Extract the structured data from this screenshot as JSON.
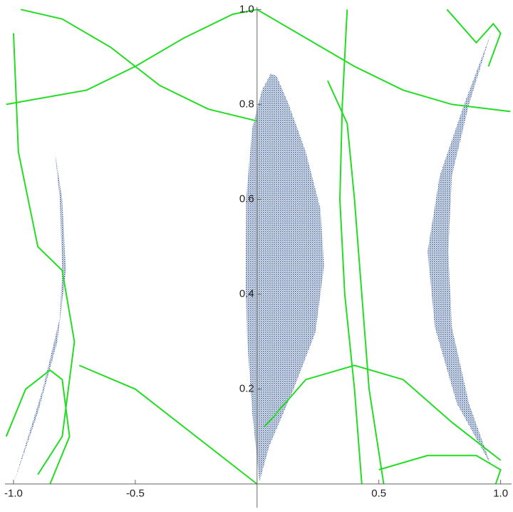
{
  "chart_data": {
    "type": "region",
    "xlim": [
      -1.035,
      1.045
    ],
    "ylim": [
      -0.05,
      1.005
    ],
    "xticks": [
      {
        "value": -1,
        "label": "-1.0"
      },
      -0.5,
      0.5,
      {
        "value": 1,
        "label": "1.0"
      }
    ],
    "yticks": [
      0.2,
      0.4,
      0.6,
      0.8,
      {
        "value": 1,
        "label": "1.0"
      }
    ],
    "regions": [
      {
        "color": "#4a6aa8",
        "x": [
          0.056,
          0.02,
          -0.02,
          -0.045,
          -0.047,
          -0.04,
          -0.02,
          0.01,
          0.05,
          0.15,
          0.24,
          0.275,
          0.26,
          0.2,
          0.13,
          0.08
        ],
        "y": [
          0.865,
          0.83,
          0.75,
          0.6,
          0.42,
          0.3,
          0.15,
          0.005,
          0.08,
          0.2,
          0.32,
          0.46,
          0.58,
          0.7,
          0.8,
          0.86
        ]
      },
      {
        "color": "#4a6aa8",
        "x": [
          0.96,
          0.85,
          0.75,
          0.7,
          0.73,
          0.82,
          0.96,
          0.87,
          0.8,
          0.785,
          0.8,
          0.87
        ],
        "y": [
          0.95,
          0.8,
          0.65,
          0.49,
          0.33,
          0.17,
          0.04,
          0.17,
          0.33,
          0.49,
          0.65,
          0.8
        ]
      },
      {
        "color": "#4a6aa8",
        "x": [
          -0.83,
          -0.8,
          -0.785,
          -0.82,
          -0.9,
          -1.0,
          -0.88,
          -0.81,
          -0.8,
          -0.81
        ],
        "y": [
          0.7,
          0.6,
          0.45,
          0.3,
          0.15,
          0.0,
          0.2,
          0.35,
          0.45,
          0.6
        ]
      }
    ],
    "series": [
      {
        "color": "#22dd22",
        "x": [
          -0.97,
          -0.8,
          -0.6,
          -0.4,
          -0.2,
          0
        ],
        "y": [
          1.0,
          0.98,
          0.92,
          0.84,
          0.79,
          0.765
        ]
      },
      {
        "color": "#22dd22",
        "x": [
          -1.03,
          -0.7,
          -0.5,
          -0.3,
          -0.1,
          0
        ],
        "y": [
          0.8,
          0.83,
          0.88,
          0.94,
          0.99,
          1.0
        ]
      },
      {
        "color": "#22dd22",
        "x": [
          0,
          0.2,
          0.4,
          0.6,
          0.8,
          1.04
        ],
        "y": [
          1.0,
          0.94,
          0.88,
          0.83,
          0.8,
          0.785
        ]
      },
      {
        "color": "#22dd22",
        "x": [
          0.37,
          0.35,
          0.34,
          0.36,
          0.4,
          0.43
        ],
        "y": [
          1.0,
          0.8,
          0.6,
          0.4,
          0.2,
          0.0
        ]
      },
      {
        "color": "#22dd22",
        "x": [
          0.29,
          0.37,
          0.4,
          0.43,
          0.46,
          0.52
        ],
        "y": [
          0.85,
          0.76,
          0.6,
          0.4,
          0.2,
          0.0
        ]
      },
      {
        "color": "#22dd22",
        "x": [
          0.03,
          0.2,
          0.4,
          0.6,
          0.8,
          1.0
        ],
        "y": [
          0.12,
          0.22,
          0.25,
          0.22,
          0.13,
          0.05
        ]
      },
      {
        "color": "#22dd22",
        "x": [
          -0.73,
          -0.5,
          -0.3,
          -0.1,
          0
        ],
        "y": [
          0.25,
          0.2,
          0.12,
          0.04,
          0.0
        ]
      },
      {
        "color": "#22dd22",
        "x": [
          -1.03,
          -0.95,
          -0.85,
          -0.8,
          -0.77,
          -0.85
        ],
        "y": [
          0.1,
          0.2,
          0.24,
          0.22,
          0.1,
          0.0
        ]
      },
      {
        "color": "#22dd22",
        "x": [
          -1.0,
          -0.98,
          -0.9,
          -0.8,
          -0.75,
          -0.8,
          -0.9
        ],
        "y": [
          0.95,
          0.7,
          0.5,
          0.45,
          0.3,
          0.1,
          0.02
        ]
      },
      {
        "color": "#22dd22",
        "x": [
          0.78,
          0.9,
          0.97,
          1.0,
          0.95
        ],
        "y": [
          1.0,
          0.93,
          0.97,
          0.95,
          0.88
        ]
      },
      {
        "color": "#22dd22",
        "x": [
          0.5,
          0.7,
          0.9,
          1.0,
          0.98
        ],
        "y": [
          0.03,
          0.06,
          0.06,
          0.03,
          0.0
        ]
      }
    ]
  }
}
